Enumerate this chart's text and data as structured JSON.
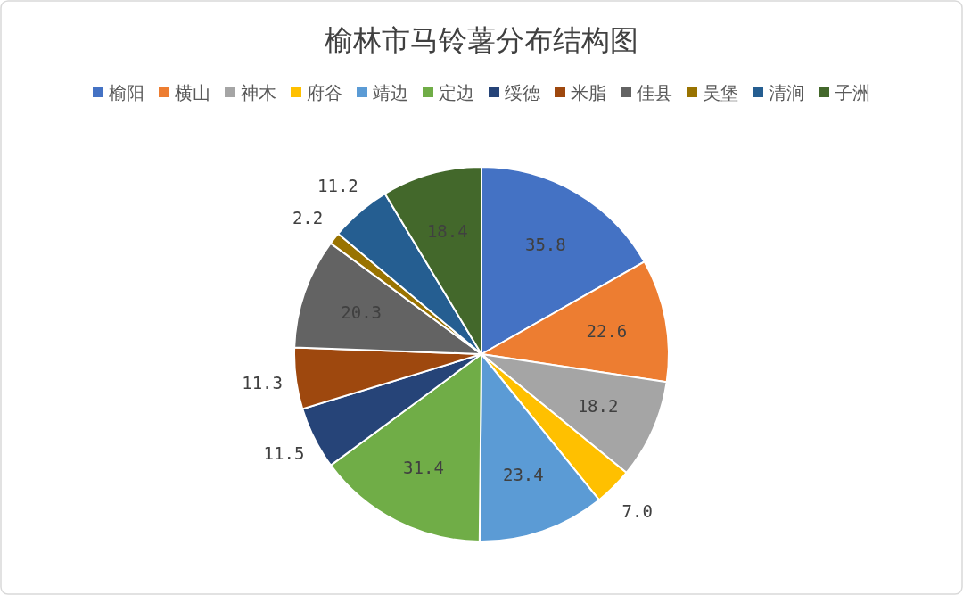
{
  "chart_data": {
    "type": "pie",
    "title": "榆林市马铃薯分布结构图",
    "categories": [
      "榆阳",
      "横山",
      "神木",
      "府谷",
      "靖边",
      "定边",
      "绥德",
      "米脂",
      "佳县",
      "吴堡",
      "清涧",
      "子洲"
    ],
    "values": [
      35.8,
      22.6,
      18.2,
      7.0,
      23.4,
      31.4,
      11.5,
      11.3,
      20.3,
      2.2,
      11.2,
      18.4
    ],
    "value_labels": [
      "35.8",
      "22.6",
      "18.2",
      "7.0",
      "23.4",
      "31.4",
      "11.5",
      "11.3",
      "20.3",
      "2.2",
      "11.2",
      "18.4"
    ],
    "colors": [
      "#4472c4",
      "#ed7d31",
      "#a5a5a5",
      "#ffc000",
      "#5b9bd5",
      "#70ad47",
      "#264478",
      "#9e480e",
      "#636363",
      "#997300",
      "#255e91",
      "#43682b"
    ],
    "legend": "top"
  }
}
